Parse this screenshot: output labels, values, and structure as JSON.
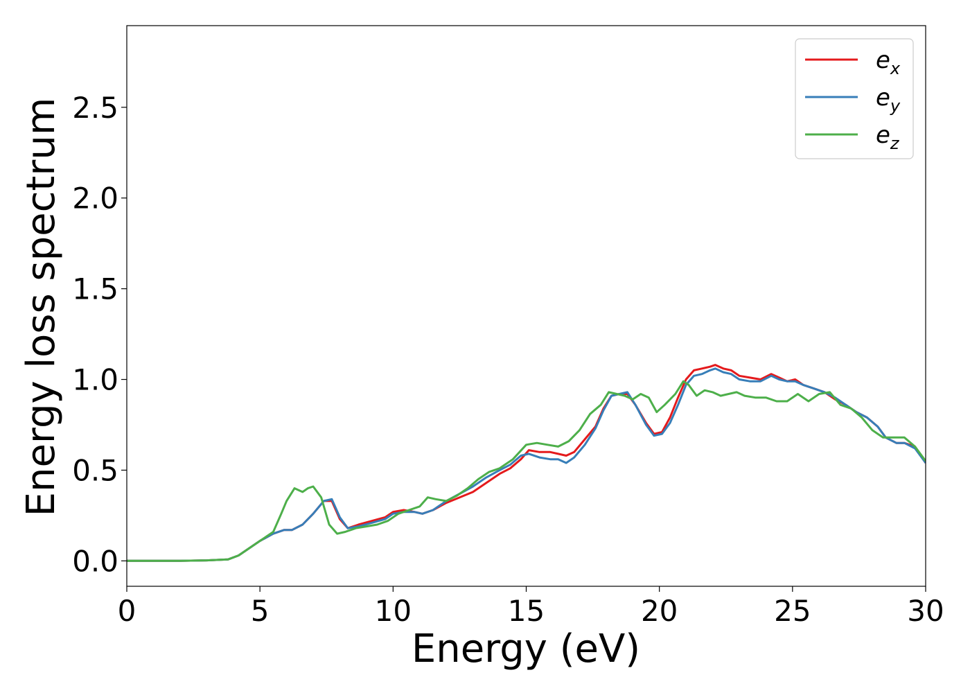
{
  "chart_data": {
    "type": "line",
    "title": "",
    "xlabel": "Energy (eV)",
    "ylabel": "Energy loss spectrum",
    "xlim": [
      0,
      30
    ],
    "ylim": [
      -0.14,
      2.95
    ],
    "xticks": [
      0,
      5,
      10,
      15,
      20,
      25,
      30
    ],
    "xtick_labels": [
      "0",
      "5",
      "10",
      "15",
      "20",
      "25",
      "30"
    ],
    "yticks": [
      0.0,
      0.5,
      1.0,
      1.5,
      2.0,
      2.5
    ],
    "ytick_labels": [
      "0.0",
      "0.5",
      "1.0",
      "1.5",
      "2.0",
      "2.5"
    ],
    "grid": false,
    "legend_position": "top-right",
    "series": [
      {
        "name": "e",
        "subscript": "x",
        "color": "#e41a1c",
        "x": [
          0,
          1,
          2,
          3,
          3.8,
          4.2,
          4.6,
          5.0,
          5.5,
          5.9,
          6.2,
          6.6,
          7.0,
          7.4,
          7.7,
          8.0,
          8.3,
          8.7,
          9.2,
          9.7,
          10.0,
          10.4,
          10.8,
          11.1,
          11.5,
          12.0,
          12.5,
          13.0,
          13.5,
          14.0,
          14.4,
          14.8,
          15.1,
          15.5,
          15.9,
          16.2,
          16.5,
          16.8,
          17.2,
          17.6,
          17.9,
          18.2,
          18.5,
          18.8,
          19.1,
          19.5,
          19.8,
          20.1,
          20.4,
          20.7,
          21.0,
          21.3,
          21.6,
          21.9,
          22.1,
          22.4,
          22.7,
          23.0,
          23.4,
          23.8,
          24.2,
          24.5,
          24.8,
          25.1,
          25.4,
          25.8,
          26.2,
          26.6,
          27.0,
          27.4,
          27.8,
          28.2,
          28.5,
          28.9,
          29.2,
          29.6,
          30.0
        ],
        "y": [
          0.0,
          0.0,
          0.0,
          0.003,
          0.008,
          0.03,
          0.07,
          0.11,
          0.15,
          0.17,
          0.17,
          0.2,
          0.26,
          0.33,
          0.33,
          0.23,
          0.18,
          0.2,
          0.22,
          0.24,
          0.27,
          0.28,
          0.27,
          0.26,
          0.28,
          0.32,
          0.35,
          0.38,
          0.43,
          0.48,
          0.51,
          0.56,
          0.61,
          0.6,
          0.6,
          0.59,
          0.58,
          0.6,
          0.67,
          0.74,
          0.84,
          0.91,
          0.92,
          0.92,
          0.86,
          0.76,
          0.7,
          0.71,
          0.79,
          0.9,
          1.0,
          1.05,
          1.06,
          1.07,
          1.08,
          1.06,
          1.05,
          1.02,
          1.01,
          1.0,
          1.03,
          1.01,
          0.99,
          1.0,
          0.97,
          0.95,
          0.93,
          0.89,
          0.86,
          0.82,
          0.79,
          0.74,
          0.68,
          0.65,
          0.65,
          0.63,
          0.54
        ]
      },
      {
        "name": "e",
        "subscript": "y",
        "color": "#377eb8",
        "x": [
          0,
          1,
          2,
          3,
          3.8,
          4.2,
          4.6,
          5.0,
          5.5,
          5.9,
          6.2,
          6.6,
          7.0,
          7.4,
          7.7,
          8.0,
          8.3,
          8.7,
          9.2,
          9.7,
          10.0,
          10.4,
          10.8,
          11.1,
          11.5,
          12.0,
          12.5,
          13.0,
          13.5,
          14.0,
          14.4,
          14.8,
          15.1,
          15.5,
          15.9,
          16.2,
          16.5,
          16.8,
          17.2,
          17.6,
          17.9,
          18.2,
          18.5,
          18.8,
          19.1,
          19.5,
          19.8,
          20.1,
          20.4,
          20.7,
          21.0,
          21.3,
          21.6,
          21.9,
          22.1,
          22.4,
          22.7,
          23.0,
          23.4,
          23.8,
          24.2,
          24.5,
          24.8,
          25.1,
          25.4,
          25.8,
          26.2,
          26.6,
          27.0,
          27.4,
          27.8,
          28.2,
          28.5,
          28.9,
          29.2,
          29.6,
          30.0
        ],
        "y": [
          0.0,
          0.0,
          0.0,
          0.003,
          0.008,
          0.03,
          0.07,
          0.11,
          0.15,
          0.17,
          0.17,
          0.2,
          0.26,
          0.33,
          0.34,
          0.24,
          0.18,
          0.19,
          0.21,
          0.23,
          0.26,
          0.27,
          0.27,
          0.26,
          0.28,
          0.33,
          0.37,
          0.41,
          0.46,
          0.5,
          0.53,
          0.58,
          0.59,
          0.57,
          0.56,
          0.56,
          0.54,
          0.57,
          0.64,
          0.73,
          0.83,
          0.91,
          0.92,
          0.93,
          0.86,
          0.75,
          0.69,
          0.7,
          0.76,
          0.86,
          0.97,
          1.02,
          1.03,
          1.05,
          1.06,
          1.04,
          1.03,
          1.0,
          0.99,
          0.99,
          1.02,
          1.0,
          0.99,
          0.99,
          0.97,
          0.95,
          0.93,
          0.9,
          0.86,
          0.82,
          0.79,
          0.74,
          0.68,
          0.65,
          0.65,
          0.62,
          0.54
        ]
      },
      {
        "name": "e",
        "subscript": "z",
        "color": "#4daf4a",
        "x": [
          0,
          1,
          2,
          3,
          3.8,
          4.2,
          4.6,
          5.0,
          5.5,
          5.8,
          6.0,
          6.3,
          6.6,
          6.8,
          7.0,
          7.3,
          7.6,
          7.9,
          8.2,
          8.6,
          9.0,
          9.4,
          9.8,
          10.2,
          10.6,
          11.0,
          11.3,
          11.6,
          12.0,
          12.4,
          12.8,
          13.2,
          13.6,
          14.0,
          14.5,
          15.0,
          15.4,
          15.8,
          16.2,
          16.6,
          17.0,
          17.4,
          17.8,
          18.1,
          18.4,
          18.7,
          19.0,
          19.3,
          19.6,
          19.9,
          20.2,
          20.6,
          20.9,
          21.1,
          21.4,
          21.7,
          22.0,
          22.3,
          22.6,
          22.9,
          23.2,
          23.6,
          24.0,
          24.4,
          24.8,
          25.2,
          25.6,
          26.0,
          26.4,
          26.8,
          27.2,
          27.6,
          28.0,
          28.4,
          28.8,
          29.2,
          29.6,
          30.0
        ],
        "y": [
          0.0,
          0.0,
          0.0,
          0.003,
          0.008,
          0.03,
          0.07,
          0.11,
          0.16,
          0.26,
          0.33,
          0.4,
          0.38,
          0.4,
          0.41,
          0.35,
          0.2,
          0.15,
          0.16,
          0.18,
          0.19,
          0.2,
          0.22,
          0.26,
          0.28,
          0.3,
          0.35,
          0.34,
          0.33,
          0.36,
          0.4,
          0.45,
          0.49,
          0.51,
          0.56,
          0.64,
          0.65,
          0.64,
          0.63,
          0.66,
          0.72,
          0.81,
          0.86,
          0.93,
          0.92,
          0.91,
          0.89,
          0.92,
          0.9,
          0.82,
          0.86,
          0.92,
          0.99,
          0.97,
          0.91,
          0.94,
          0.93,
          0.91,
          0.92,
          0.93,
          0.91,
          0.9,
          0.9,
          0.88,
          0.88,
          0.92,
          0.88,
          0.92,
          0.93,
          0.86,
          0.84,
          0.79,
          0.72,
          0.68,
          0.68,
          0.68,
          0.63,
          0.55
        ]
      }
    ]
  }
}
